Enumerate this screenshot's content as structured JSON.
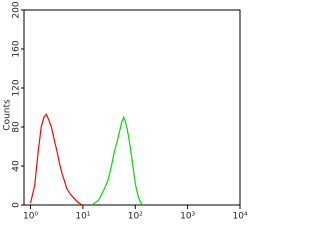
{
  "chart_data": {
    "type": "line",
    "y_label": "Counts",
    "log_x": true,
    "xlim": [
      0.75,
      10000
    ],
    "ylim": [
      0,
      200
    ],
    "xticks": [
      {
        "value": 1,
        "label": "10⁰"
      },
      {
        "value": 10,
        "label": "10¹"
      },
      {
        "value": 100,
        "label": "10²"
      },
      {
        "value": 1000,
        "label": "10³"
      },
      {
        "value": 10000,
        "label": "10⁴"
      }
    ],
    "yticks": [
      0,
      40,
      80,
      120,
      160,
      200
    ],
    "series": [
      {
        "color": "#ff0000",
        "x": [
          1,
          1.2,
          1.4,
          1.6,
          1.8,
          2,
          2.2,
          2.5,
          2.8,
          3.2,
          3.6,
          4,
          4.5,
          5,
          6,
          7,
          8,
          9,
          10
        ],
        "values": [
          2,
          20,
          55,
          80,
          90,
          93,
          88,
          80,
          68,
          55,
          42,
          32,
          24,
          16,
          10,
          6,
          3,
          1,
          0
        ]
      },
      {
        "color": "#00dd00",
        "x": [
          15,
          20,
          25,
          30,
          35,
          40,
          45,
          50,
          55,
          60,
          65,
          70,
          80,
          90,
          100,
          110,
          120,
          130,
          140
        ],
        "values": [
          0,
          5,
          15,
          25,
          40,
          55,
          65,
          75,
          85,
          90,
          85,
          78,
          60,
          40,
          22,
          12,
          5,
          2,
          0
        ]
      }
    ]
  }
}
